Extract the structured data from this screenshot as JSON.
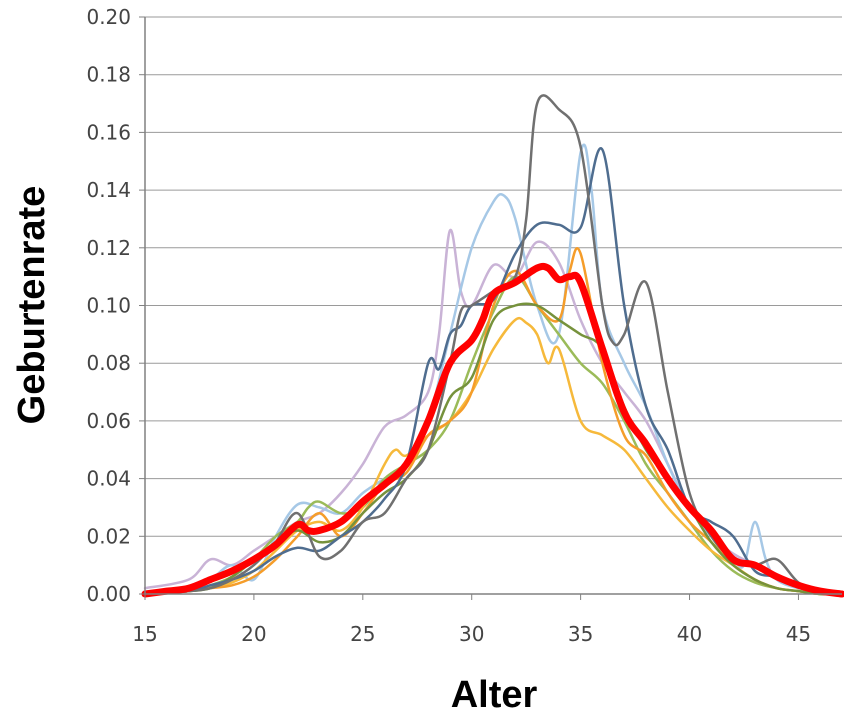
{
  "chart_data": {
    "type": "line",
    "xlabel": "Alter",
    "ylabel": "Geburtenrate",
    "xlim": [
      15,
      47
    ],
    "ylim": [
      0,
      0.2
    ],
    "x_ticks": [
      "15",
      "20",
      "25",
      "30",
      "35",
      "40",
      "45"
    ],
    "y_ticks": [
      "0.00",
      "0.02",
      "0.04",
      "0.06",
      "0.08",
      "0.10",
      "0.12",
      "0.14",
      "0.16",
      "0.18",
      "0.20"
    ],
    "grid": "horizontal",
    "legend": "none",
    "colors": {
      "gridline": "#9a9a9a",
      "axis": "#808080",
      "tick_text": "#444444",
      "title_text": "#000000"
    },
    "series": [
      {
        "color": "#c9b3d6",
        "width": 2.5,
        "x": [
          15,
          17,
          18,
          19,
          20,
          21,
          22,
          23,
          24,
          25,
          26,
          27,
          28,
          28.5,
          29,
          29.5,
          30,
          31,
          32,
          33,
          34,
          35,
          36,
          37,
          38,
          39,
          40,
          41,
          42,
          43,
          44,
          45,
          46,
          47
        ],
        "y": [
          0.002,
          0.005,
          0.012,
          0.01,
          0.015,
          0.02,
          0.025,
          0.028,
          0.035,
          0.045,
          0.058,
          0.062,
          0.07,
          0.09,
          0.126,
          0.105,
          0.1,
          0.114,
          0.11,
          0.122,
          0.115,
          0.095,
          0.08,
          0.07,
          0.06,
          0.045,
          0.03,
          0.02,
          0.014,
          0.01,
          0.006,
          0.003,
          0.001,
          0
        ]
      },
      {
        "color": "#a6c8e6",
        "width": 2.5,
        "x": [
          15,
          17,
          18,
          19,
          20,
          21,
          22,
          23,
          24,
          25,
          26,
          27,
          28,
          29,
          30,
          31,
          31.5,
          32,
          33,
          34,
          35,
          35.5,
          36,
          37,
          38,
          39,
          40,
          41,
          42,
          42.5,
          43,
          43.5,
          44,
          45,
          46,
          47
        ],
        "y": [
          0,
          0.002,
          0.005,
          0.01,
          0.005,
          0.02,
          0.031,
          0.03,
          0.028,
          0.035,
          0.04,
          0.045,
          0.06,
          0.09,
          0.12,
          0.136,
          0.138,
          0.13,
          0.1,
          0.09,
          0.153,
          0.14,
          0.1,
          0.08,
          0.065,
          0.045,
          0.03,
          0.02,
          0.012,
          0.01,
          0.025,
          0.012,
          0.005,
          0.002,
          0.001,
          0
        ]
      },
      {
        "color": "#9bbb59",
        "width": 2.5,
        "x": [
          15,
          17,
          18,
          19,
          20,
          21,
          22,
          22.5,
          23,
          24,
          25,
          26,
          27,
          28,
          29,
          30,
          31,
          32,
          33,
          34,
          35,
          36,
          37,
          38,
          39,
          40,
          41,
          42,
          43,
          44,
          45,
          46,
          47
        ],
        "y": [
          0,
          0.001,
          0.003,
          0.006,
          0.012,
          0.02,
          0.025,
          0.03,
          0.032,
          0.028,
          0.03,
          0.04,
          0.045,
          0.05,
          0.06,
          0.08,
          0.098,
          0.11,
          0.1,
          0.09,
          0.08,
          0.073,
          0.06,
          0.045,
          0.035,
          0.025,
          0.015,
          0.008,
          0.004,
          0.002,
          0.001,
          0,
          0
        ]
      },
      {
        "color": "#f6b93b",
        "width": 2.5,
        "x": [
          15,
          17,
          18,
          19,
          20,
          21,
          22,
          23,
          24,
          25,
          26,
          26.5,
          27,
          28,
          29,
          30,
          31,
          32,
          32.5,
          33,
          33.5,
          34,
          35,
          36,
          37,
          38,
          39,
          40,
          41,
          42,
          43,
          44,
          45,
          46,
          47
        ],
        "y": [
          0,
          0.001,
          0.002,
          0.004,
          0.008,
          0.015,
          0.022,
          0.025,
          0.022,
          0.03,
          0.045,
          0.05,
          0.048,
          0.055,
          0.06,
          0.07,
          0.085,
          0.095,
          0.094,
          0.09,
          0.08,
          0.085,
          0.06,
          0.055,
          0.05,
          0.04,
          0.03,
          0.022,
          0.015,
          0.01,
          0.005,
          0.002,
          0.001,
          0,
          0
        ]
      },
      {
        "color": "#f59d2a",
        "width": 2.5,
        "x": [
          15,
          17,
          18,
          19,
          20,
          21,
          22,
          23,
          24,
          25,
          26,
          27,
          28,
          29,
          30,
          31,
          32,
          33,
          34,
          34.5,
          35,
          36,
          37,
          38,
          39,
          40,
          41,
          42,
          43,
          44,
          45,
          46,
          47
        ],
        "y": [
          0,
          0.001,
          0.002,
          0.003,
          0.006,
          0.012,
          0.02,
          0.028,
          0.02,
          0.028,
          0.038,
          0.042,
          0.055,
          0.06,
          0.07,
          0.1,
          0.112,
          0.1,
          0.095,
          0.112,
          0.118,
          0.08,
          0.055,
          0.048,
          0.035,
          0.025,
          0.018,
          0.01,
          0.005,
          0.002,
          0.001,
          0,
          0
        ]
      },
      {
        "color": "#76923c",
        "width": 2.5,
        "x": [
          15,
          17,
          18,
          19,
          20,
          21,
          22,
          23,
          24,
          25,
          26,
          27,
          28,
          29,
          30,
          31,
          32,
          33,
          34,
          35,
          36,
          37,
          38,
          39,
          40,
          41,
          42,
          43,
          44,
          45,
          46,
          47
        ],
        "y": [
          0,
          0.001,
          0.002,
          0.006,
          0.012,
          0.018,
          0.022,
          0.018,
          0.02,
          0.028,
          0.035,
          0.04,
          0.05,
          0.068,
          0.075,
          0.095,
          0.1,
          0.1,
          0.095,
          0.09,
          0.085,
          0.065,
          0.05,
          0.04,
          0.03,
          0.018,
          0.01,
          0.005,
          0.002,
          0.001,
          0,
          0
        ]
      },
      {
        "color": "#4f6d8f",
        "width": 2.5,
        "x": [
          15,
          17,
          18,
          19,
          20,
          21,
          22,
          23,
          24,
          25,
          26,
          27,
          28,
          28.5,
          29,
          29.5,
          30,
          31,
          32,
          33,
          34,
          35,
          36,
          37,
          38,
          39,
          40,
          41,
          42,
          43,
          44,
          45,
          46,
          47
        ],
        "y": [
          0,
          0.001,
          0.003,
          0.005,
          0.008,
          0.013,
          0.016,
          0.015,
          0.02,
          0.025,
          0.033,
          0.045,
          0.08,
          0.078,
          0.09,
          0.093,
          0.1,
          0.102,
          0.118,
          0.128,
          0.128,
          0.127,
          0.154,
          0.1,
          0.065,
          0.05,
          0.03,
          0.025,
          0.02,
          0.008,
          0.006,
          0.003,
          0.001,
          0
        ]
      },
      {
        "color": "#707070",
        "width": 2.5,
        "x": [
          15,
          17,
          18,
          19,
          20,
          21,
          22,
          23,
          24,
          25,
          26,
          27,
          28,
          29,
          29.5,
          30,
          31,
          32,
          32.5,
          33,
          34,
          35,
          36,
          36.5,
          37,
          38,
          39,
          40,
          41,
          42,
          43,
          44,
          45,
          46,
          47
        ],
        "y": [
          0,
          0.001,
          0.002,
          0.005,
          0.01,
          0.018,
          0.028,
          0.013,
          0.015,
          0.025,
          0.028,
          0.04,
          0.05,
          0.08,
          0.098,
          0.1,
          0.105,
          0.11,
          0.13,
          0.17,
          0.168,
          0.155,
          0.1,
          0.087,
          0.09,
          0.108,
          0.07,
          0.035,
          0.02,
          0.012,
          0.01,
          0.012,
          0.004,
          0.001,
          0
        ]
      },
      {
        "color": "#ff0000",
        "width": 7,
        "x": [
          15,
          16,
          17,
          18,
          19,
          20,
          21,
          22,
          22.5,
          23,
          24,
          25,
          26,
          27,
          28,
          29,
          30,
          30.5,
          31,
          32,
          33,
          33.5,
          34,
          34.5,
          35,
          36,
          37,
          38,
          39,
          40,
          41,
          42,
          43,
          44,
          45,
          46,
          47
        ],
        "y": [
          0,
          0.001,
          0.002,
          0.005,
          0.008,
          0.012,
          0.017,
          0.024,
          0.022,
          0.022,
          0.025,
          0.032,
          0.038,
          0.045,
          0.06,
          0.08,
          0.088,
          0.095,
          0.104,
          0.108,
          0.113,
          0.113,
          0.109,
          0.11,
          0.108,
          0.085,
          0.063,
          0.052,
          0.04,
          0.03,
          0.022,
          0.012,
          0.01,
          0.006,
          0.003,
          0.001,
          0
        ]
      }
    ]
  }
}
